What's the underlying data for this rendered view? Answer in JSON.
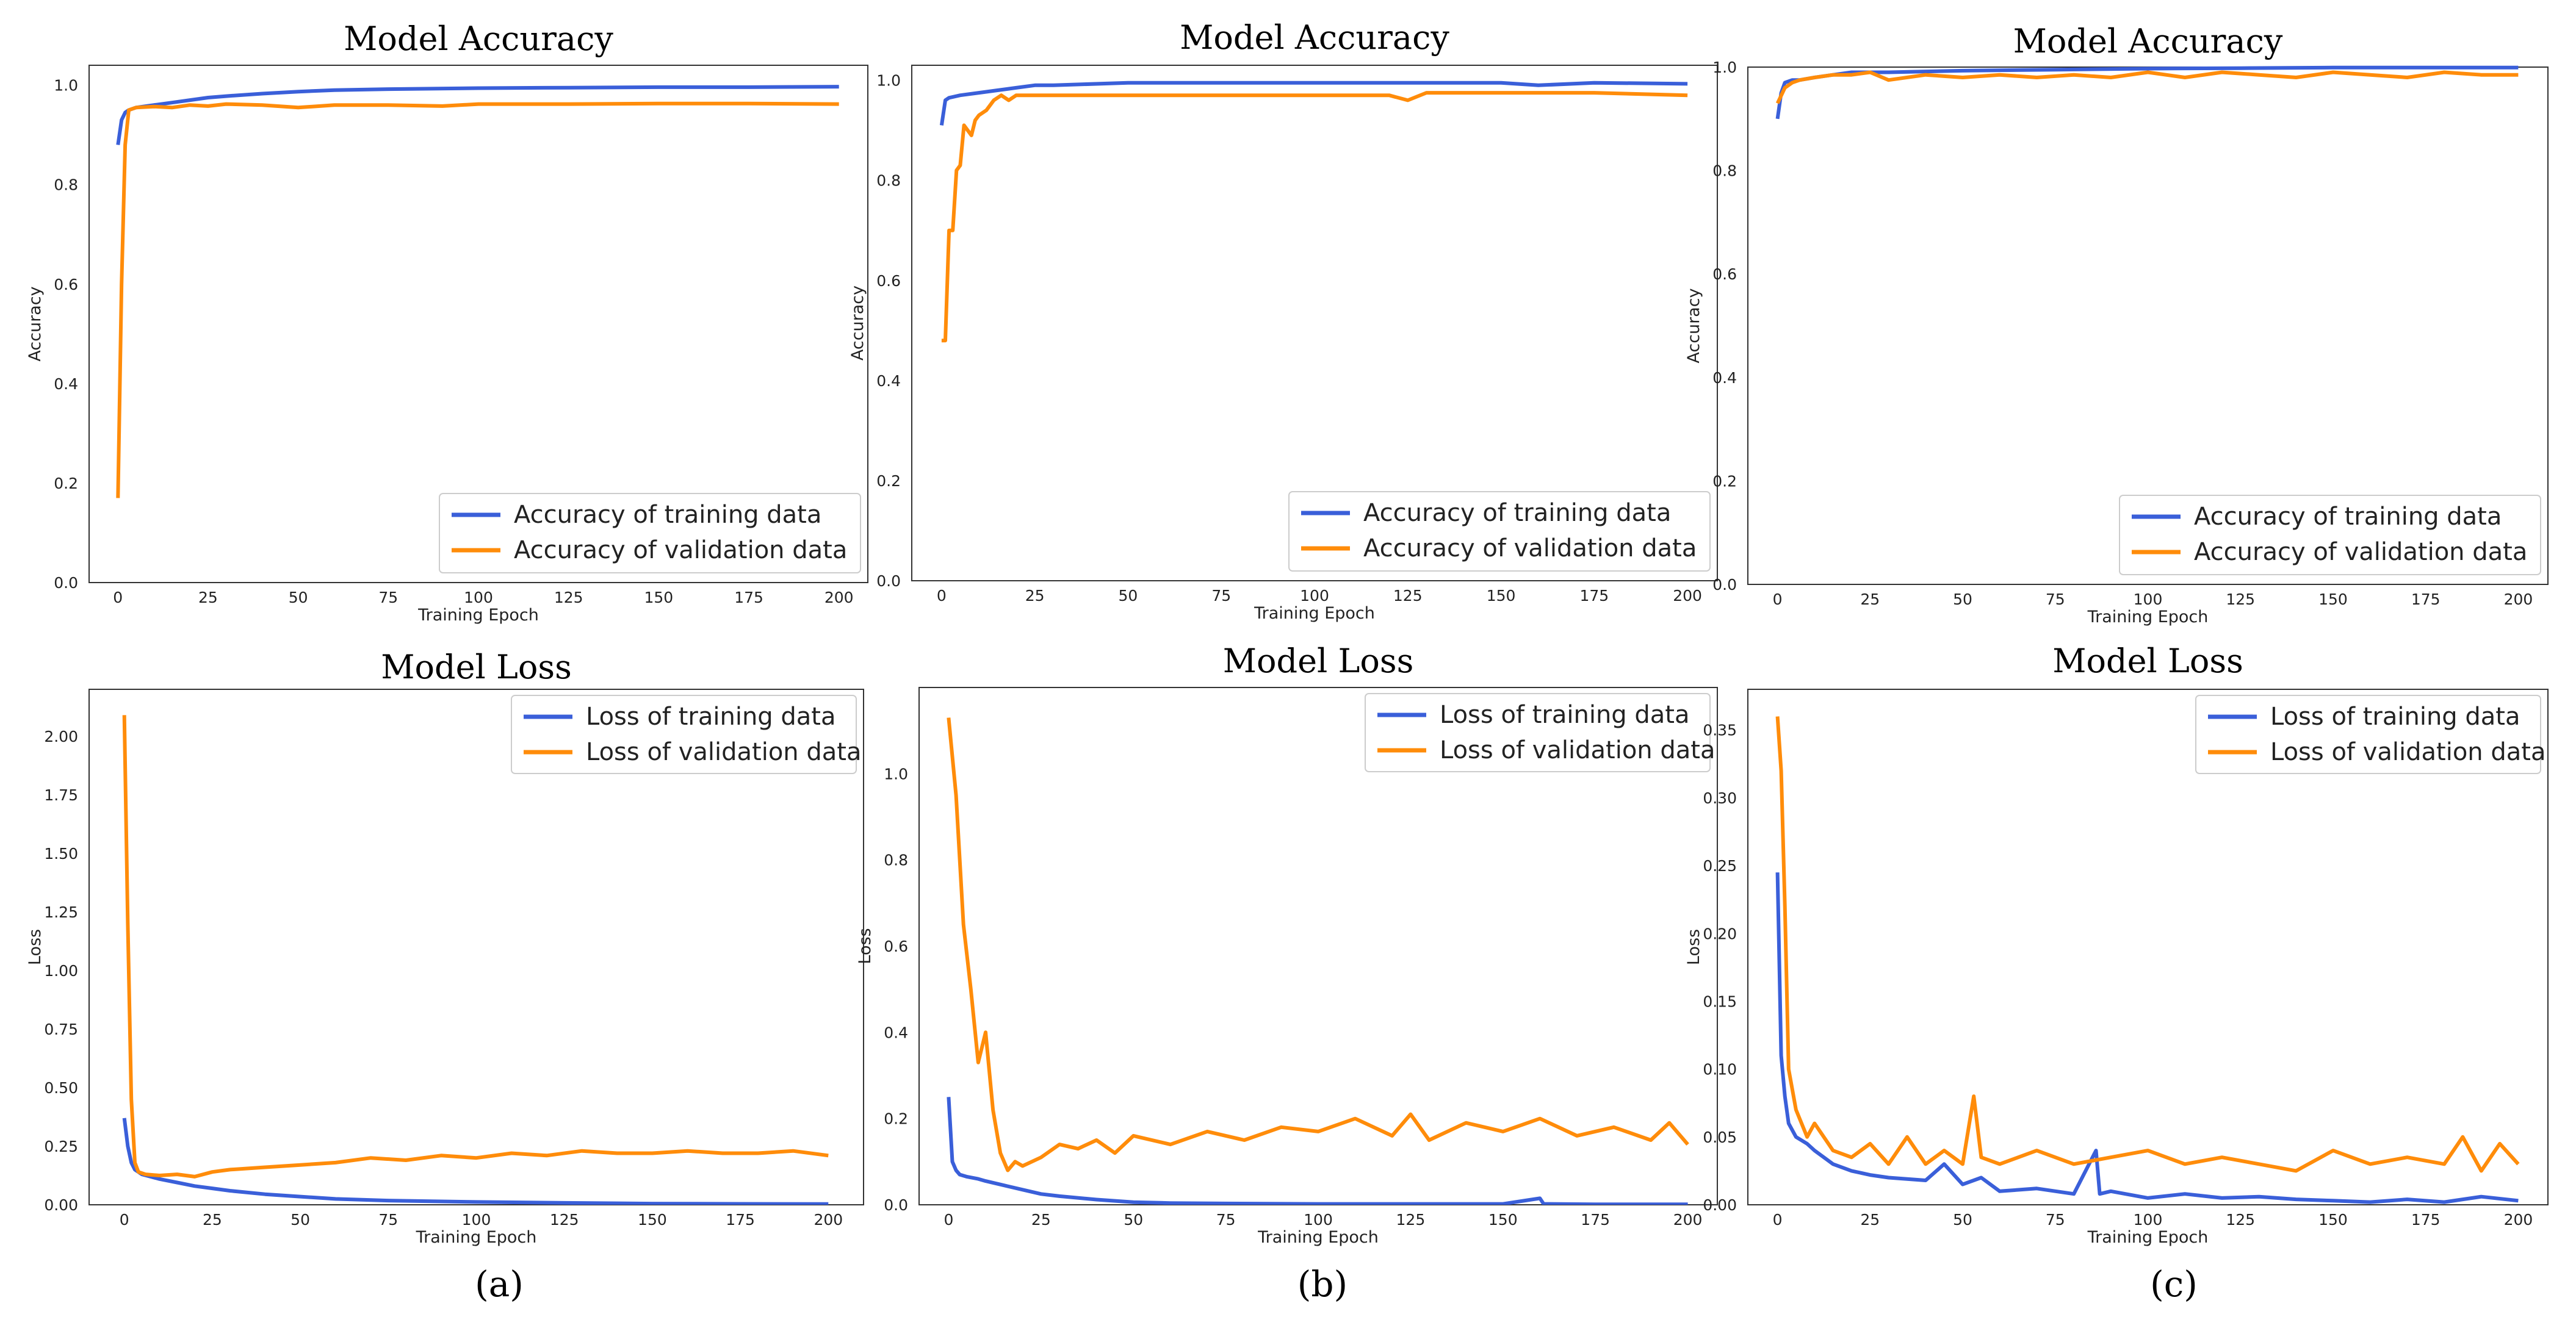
{
  "colors": {
    "training": "#3a5fd9",
    "validation": "#ff8c0a"
  },
  "captions": [
    "(a)",
    "(b)",
    "(c)"
  ],
  "chart_data": [
    {
      "type": "line",
      "title": "Model Accuracy",
      "xlabel": "Training Epoch",
      "ylabel": "Accuracy",
      "xlim": [
        -8,
        208
      ],
      "ylim": [
        0,
        1.04
      ],
      "xticks": [
        "0",
        "25",
        "50",
        "75",
        "100",
        "125",
        "150",
        "175",
        "200"
      ],
      "yticks": [
        "0.0",
        "0.2",
        "0.4",
        "0.6",
        "0.8",
        "1.0"
      ],
      "legend": "lower-right",
      "grid": false,
      "series": [
        {
          "name": "Accuracy of training data",
          "x": [
            0,
            1,
            2,
            3,
            5,
            8,
            10,
            15,
            20,
            25,
            30,
            40,
            50,
            60,
            75,
            100,
            125,
            150,
            175,
            200
          ],
          "y": [
            0.88,
            0.93,
            0.945,
            0.95,
            0.955,
            0.958,
            0.96,
            0.965,
            0.97,
            0.975,
            0.978,
            0.983,
            0.987,
            0.99,
            0.992,
            0.994,
            0.995,
            0.996,
            0.996,
            0.997
          ]
        },
        {
          "name": "Accuracy of validation data",
          "x": [
            0,
            1,
            2,
            3,
            5,
            10,
            15,
            20,
            25,
            30,
            40,
            50,
            60,
            75,
            90,
            100,
            125,
            150,
            175,
            200
          ],
          "y": [
            0.17,
            0.6,
            0.88,
            0.95,
            0.955,
            0.957,
            0.955,
            0.96,
            0.958,
            0.962,
            0.96,
            0.955,
            0.96,
            0.96,
            0.958,
            0.962,
            0.962,
            0.963,
            0.963,
            0.962
          ]
        }
      ]
    },
    {
      "type": "line",
      "title": "Model Accuracy",
      "xlabel": "Training Epoch",
      "ylabel": "Accuracy",
      "xlim": [
        -8,
        208
      ],
      "ylim": [
        0,
        1.03
      ],
      "xticks": [
        "0",
        "25",
        "50",
        "75",
        "100",
        "125",
        "150",
        "175",
        "200"
      ],
      "yticks": [
        "0.0",
        "0.2",
        "0.4",
        "0.6",
        "0.8",
        "1.0"
      ],
      "legend": "lower-right",
      "grid": false,
      "series": [
        {
          "name": "Accuracy of training data",
          "x": [
            0,
            1,
            2,
            5,
            10,
            15,
            20,
            25,
            30,
            50,
            75,
            100,
            125,
            150,
            160,
            175,
            200
          ],
          "y": [
            0.91,
            0.96,
            0.965,
            0.97,
            0.975,
            0.98,
            0.985,
            0.99,
            0.99,
            0.995,
            0.995,
            0.995,
            0.995,
            0.995,
            0.99,
            0.995,
            0.993
          ]
        },
        {
          "name": "Accuracy of validation data",
          "x": [
            0,
            1,
            2,
            3,
            4,
            5,
            6,
            7,
            8,
            9,
            10,
            12,
            14,
            16,
            18,
            20,
            25,
            30,
            50,
            75,
            100,
            120,
            125,
            130,
            150,
            175,
            200
          ],
          "y": [
            0.48,
            0.48,
            0.7,
            0.7,
            0.82,
            0.83,
            0.91,
            0.9,
            0.89,
            0.92,
            0.93,
            0.94,
            0.96,
            0.97,
            0.96,
            0.97,
            0.97,
            0.97,
            0.97,
            0.97,
            0.97,
            0.97,
            0.96,
            0.975,
            0.975,
            0.975,
            0.97
          ]
        }
      ]
    },
    {
      "type": "line",
      "title": "Model Accuracy",
      "xlabel": "Training Epoch",
      "ylabel": "Accuracy",
      "xlim": [
        -8,
        208
      ],
      "ylim": [
        0,
        1.0
      ],
      "xticks": [
        "0",
        "25",
        "50",
        "75",
        "100",
        "125",
        "150",
        "175",
        "200"
      ],
      "yticks": [
        "0.0",
        "0.2",
        "0.4",
        "0.6",
        "0.8",
        "1.0"
      ],
      "legend": "lower-right",
      "grid": false,
      "series": [
        {
          "name": "Accuracy of training data",
          "x": [
            0,
            1,
            2,
            4,
            6,
            10,
            15,
            20,
            30,
            50,
            75,
            100,
            125,
            150,
            175,
            200
          ],
          "y": [
            0.9,
            0.95,
            0.97,
            0.975,
            0.975,
            0.98,
            0.985,
            0.99,
            0.99,
            0.993,
            0.995,
            0.997,
            0.998,
            0.999,
            0.999,
            0.999
          ]
        },
        {
          "name": "Accuracy of validation data",
          "x": [
            0,
            2,
            4,
            6,
            10,
            15,
            20,
            25,
            30,
            40,
            50,
            60,
            70,
            80,
            90,
            100,
            110,
            120,
            130,
            140,
            150,
            160,
            170,
            180,
            190,
            200
          ],
          "y": [
            0.93,
            0.96,
            0.97,
            0.975,
            0.98,
            0.985,
            0.985,
            0.99,
            0.975,
            0.985,
            0.98,
            0.985,
            0.98,
            0.985,
            0.98,
            0.99,
            0.98,
            0.99,
            0.985,
            0.98,
            0.99,
            0.985,
            0.98,
            0.99,
            0.985,
            0.985
          ]
        }
      ]
    },
    {
      "type": "line",
      "title": "Model Loss",
      "xlabel": "Training Epoch",
      "ylabel": "Loss",
      "xlim": [
        -10,
        210
      ],
      "ylim": [
        0,
        2.2
      ],
      "xticks": [
        "0",
        "25",
        "50",
        "75",
        "100",
        "125",
        "150",
        "175",
        "200"
      ],
      "yticks": [
        "0.00",
        "0.25",
        "0.50",
        "0.75",
        "1.00",
        "1.25",
        "1.50",
        "1.75",
        "2.00"
      ],
      "legend": "upper-right",
      "grid": false,
      "series": [
        {
          "name": "Loss of training data",
          "x": [
            0,
            1,
            2,
            3,
            5,
            10,
            15,
            20,
            25,
            30,
            40,
            50,
            60,
            75,
            100,
            125,
            150,
            175,
            200
          ],
          "y": [
            0.37,
            0.25,
            0.18,
            0.15,
            0.13,
            0.11,
            0.095,
            0.08,
            0.07,
            0.06,
            0.045,
            0.035,
            0.025,
            0.018,
            0.012,
            0.008,
            0.005,
            0.004,
            0.003
          ]
        },
        {
          "name": "Loss of validation data",
          "x": [
            0,
            1,
            2,
            3,
            4,
            6,
            10,
            15,
            20,
            25,
            30,
            40,
            50,
            60,
            70,
            80,
            90,
            100,
            110,
            120,
            130,
            140,
            150,
            160,
            170,
            180,
            190,
            200
          ],
          "y": [
            2.09,
            1.2,
            0.45,
            0.18,
            0.14,
            0.13,
            0.125,
            0.13,
            0.12,
            0.14,
            0.15,
            0.16,
            0.17,
            0.18,
            0.2,
            0.19,
            0.21,
            0.2,
            0.22,
            0.21,
            0.23,
            0.22,
            0.22,
            0.23,
            0.22,
            0.22,
            0.23,
            0.21
          ]
        }
      ]
    },
    {
      "type": "line",
      "title": "Model Loss",
      "xlabel": "Training Epoch",
      "ylabel": "Loss",
      "xlim": [
        -8,
        208
      ],
      "ylim": [
        0,
        1.2
      ],
      "xticks": [
        "0",
        "25",
        "50",
        "75",
        "100",
        "125",
        "150",
        "175",
        "200"
      ],
      "yticks": [
        "0.0",
        "0.2",
        "0.4",
        "0.6",
        "0.8",
        "1.0"
      ],
      "legend": "upper-right",
      "grid": false,
      "series": [
        {
          "name": "Loss of training data",
          "x": [
            0,
            1,
            2,
            3,
            5,
            8,
            10,
            15,
            20,
            25,
            30,
            40,
            50,
            60,
            75,
            100,
            125,
            150,
            160,
            161,
            162,
            175,
            200
          ],
          "y": [
            0.25,
            0.1,
            0.08,
            0.07,
            0.065,
            0.06,
            0.055,
            0.045,
            0.035,
            0.025,
            0.02,
            0.012,
            0.006,
            0.004,
            0.003,
            0.002,
            0.002,
            0.002,
            0.015,
            0.002,
            0.002,
            0.001,
            0.001
          ]
        },
        {
          "name": "Loss of validation data",
          "x": [
            0,
            2,
            4,
            6,
            8,
            10,
            12,
            14,
            16,
            18,
            20,
            25,
            30,
            35,
            40,
            45,
            50,
            60,
            70,
            80,
            90,
            100,
            110,
            120,
            125,
            130,
            140,
            150,
            160,
            170,
            180,
            190,
            195,
            200
          ],
          "y": [
            1.13,
            0.95,
            0.65,
            0.5,
            0.33,
            0.4,
            0.22,
            0.12,
            0.08,
            0.1,
            0.09,
            0.11,
            0.14,
            0.13,
            0.15,
            0.12,
            0.16,
            0.14,
            0.17,
            0.15,
            0.18,
            0.17,
            0.2,
            0.16,
            0.21,
            0.15,
            0.19,
            0.17,
            0.2,
            0.16,
            0.18,
            0.15,
            0.19,
            0.14
          ]
        }
      ]
    },
    {
      "type": "line",
      "title": "Model Loss",
      "xlabel": "Training Epoch",
      "ylabel": "Loss",
      "xlim": [
        -8,
        208
      ],
      "ylim": [
        0,
        0.38
      ],
      "xticks": [
        "0",
        "25",
        "50",
        "75",
        "100",
        "125",
        "150",
        "175",
        "200"
      ],
      "yticks": [
        "0.00",
        "0.05",
        "0.10",
        "0.15",
        "0.20",
        "0.25",
        "0.30",
        "0.35"
      ],
      "legend": "upper-right",
      "grid": false,
      "series": [
        {
          "name": "Loss of training data",
          "x": [
            0,
            1,
            2,
            3,
            5,
            8,
            10,
            15,
            20,
            25,
            30,
            40,
            45,
            50,
            55,
            60,
            70,
            80,
            86,
            87,
            90,
            100,
            110,
            120,
            130,
            140,
            150,
            160,
            170,
            180,
            190,
            200
          ],
          "y": [
            0.245,
            0.11,
            0.08,
            0.06,
            0.05,
            0.045,
            0.04,
            0.03,
            0.025,
            0.022,
            0.02,
            0.018,
            0.03,
            0.015,
            0.02,
            0.01,
            0.012,
            0.008,
            0.04,
            0.008,
            0.01,
            0.005,
            0.008,
            0.005,
            0.006,
            0.004,
            0.003,
            0.002,
            0.004,
            0.002,
            0.006,
            0.003
          ]
        },
        {
          "name": "Loss of validation data",
          "x": [
            0,
            1,
            2,
            3,
            5,
            8,
            10,
            15,
            20,
            25,
            30,
            35,
            40,
            45,
            50,
            53,
            55,
            60,
            70,
            80,
            90,
            100,
            110,
            120,
            130,
            140,
            150,
            160,
            170,
            180,
            185,
            190,
            195,
            200
          ],
          "y": [
            0.36,
            0.32,
            0.22,
            0.1,
            0.07,
            0.05,
            0.06,
            0.04,
            0.035,
            0.045,
            0.03,
            0.05,
            0.03,
            0.04,
            0.03,
            0.08,
            0.035,
            0.03,
            0.04,
            0.03,
            0.035,
            0.04,
            0.03,
            0.035,
            0.03,
            0.025,
            0.04,
            0.03,
            0.035,
            0.03,
            0.05,
            0.025,
            0.045,
            0.03
          ]
        }
      ]
    }
  ]
}
